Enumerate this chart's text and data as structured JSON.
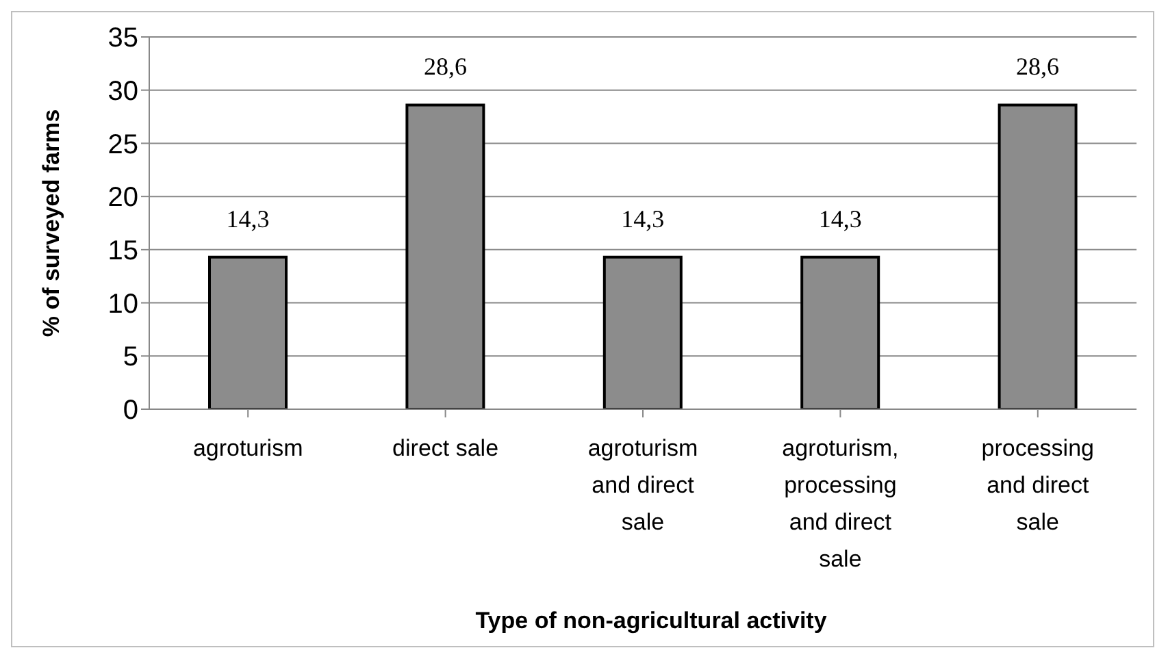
{
  "chart_data": {
    "type": "bar",
    "xlabel": "Type of non-agricultural activity",
    "ylabel": "% of surveyed farms",
    "categories": [
      "agroturism",
      "direct sale",
      "agroturism and direct sale",
      "agroturism, processing and direct sale",
      "processing and direct sale"
    ],
    "values": [
      14.3,
      28.6,
      14.3,
      14.3,
      28.6
    ],
    "value_labels": [
      "14,3",
      "28,6",
      "14,3",
      "14,3",
      "28,6"
    ],
    "color": "#8c8c8c",
    "ylim": [
      0,
      35
    ],
    "yticks": [
      0,
      5,
      10,
      15,
      20,
      25,
      30,
      35
    ],
    "grid": "y",
    "legend": false
  }
}
